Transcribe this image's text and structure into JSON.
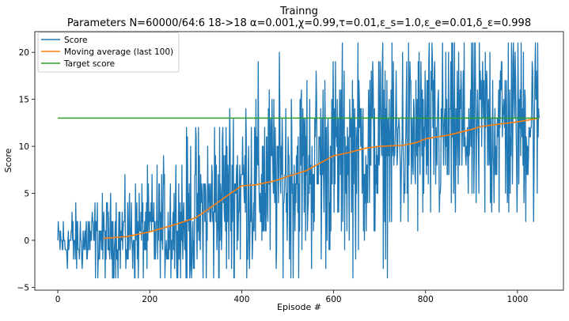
{
  "title_line1": "Trainng",
  "title_line2": "Parameters N=60000/64:6 18->18 α=0.001,χ=0.99,τ=0.01,ε_s=1.0,ε_e=0.01,δ_ε=0.998",
  "chart_data": {
    "type": "line",
    "xlabel": "Episode #",
    "ylabel": "Score",
    "xlim": [
      -50,
      1100
    ],
    "ylim": [
      -5.3,
      22.2
    ],
    "xticks": [
      0,
      200,
      400,
      600,
      800,
      1000
    ],
    "yticks": [
      -5,
      0,
      5,
      10,
      15,
      20
    ],
    "grid": false,
    "legend": "upper-left",
    "series": [
      {
        "name": "Score",
        "color": "#1f77b4",
        "kind": "noisy-scores",
        "n_points": 1048,
        "range": [
          -4,
          21
        ],
        "trend": [
          [
            0,
            -0.3
          ],
          [
            100,
            0.2
          ],
          [
            200,
            0.9
          ],
          [
            300,
            2.4
          ],
          [
            400,
            5.8
          ],
          [
            500,
            6.8
          ],
          [
            600,
            9.0
          ],
          [
            700,
            10.0
          ],
          [
            800,
            10.8
          ],
          [
            900,
            11.8
          ],
          [
            1000,
            12.6
          ],
          [
            1047,
            13.0
          ]
        ],
        "spread": [
          [
            0,
            1.6
          ],
          [
            100,
            2.2
          ],
          [
            200,
            3.0
          ],
          [
            300,
            4.5
          ],
          [
            400,
            5.3
          ],
          [
            1047,
            5.6
          ]
        ]
      },
      {
        "name": "Moving average (last 100)",
        "color": "#ff7f0e",
        "x": [
          99,
          150,
          200,
          250,
          300,
          330,
          370,
          400,
          430,
          470,
          500,
          540,
          570,
          600,
          630,
          670,
          700,
          750,
          780,
          800,
          850,
          900,
          920,
          950,
          1000,
          1047
        ],
        "y": [
          0.2,
          0.4,
          0.9,
          1.6,
          2.4,
          3.4,
          4.8,
          5.8,
          5.9,
          6.3,
          6.8,
          7.4,
          8.2,
          9.0,
          9.3,
          9.8,
          10.0,
          10.1,
          10.4,
          10.8,
          11.2,
          11.8,
          12.1,
          12.3,
          12.6,
          13.0
        ]
      },
      {
        "name": "Target score",
        "color": "#2ca02c",
        "x": [
          0,
          1047
        ],
        "y": [
          13,
          13
        ]
      }
    ]
  }
}
